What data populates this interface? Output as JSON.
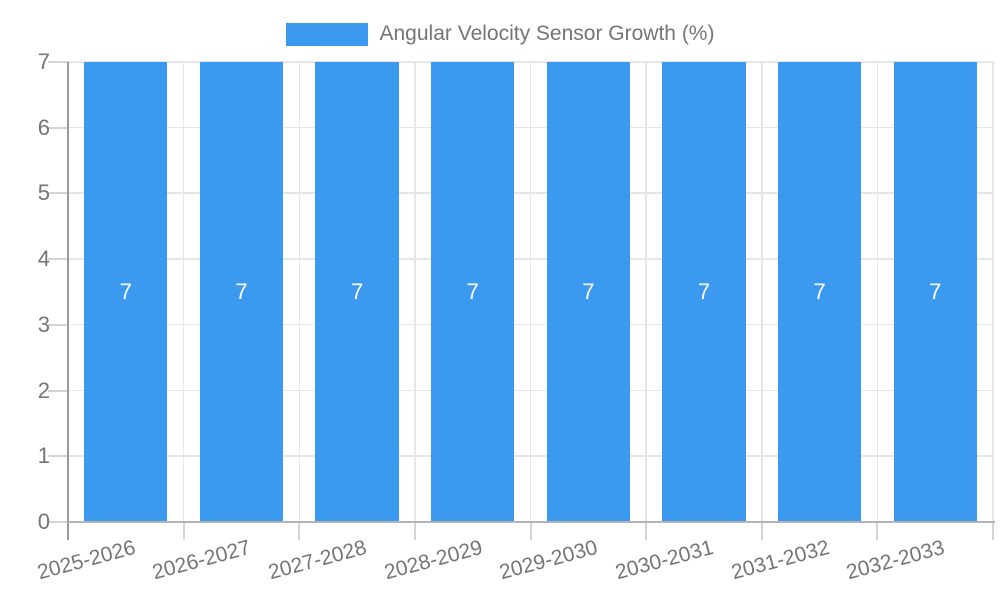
{
  "chart_data": {
    "type": "bar",
    "title": "",
    "xlabel": "",
    "ylabel": "",
    "categories": [
      "2025-2026",
      "2026-2027",
      "2027-2028",
      "2028-2029",
      "2029-2030",
      "2030-2031",
      "2031-2032",
      "2032-2033"
    ],
    "series": [
      {
        "name": "Angular Velocity Sensor Growth (%)",
        "values": [
          7,
          7,
          7,
          7,
          7,
          7,
          7,
          7
        ]
      }
    ],
    "bar_value_labels": [
      "7",
      "7",
      "7",
      "7",
      "7",
      "7",
      "7",
      "7"
    ],
    "ylim": [
      0,
      7
    ],
    "yticks": [
      0,
      1,
      2,
      3,
      4,
      5,
      6,
      7
    ],
    "grid": true,
    "legend_position": "top",
    "colors": {
      "bar": "#3b99ef",
      "bar_value_text": "#ffffff",
      "axis_text": "#757575",
      "gridline": "#e6e6e6",
      "tick": "#d4d4d4",
      "y_axis_line": "#9a9a9a",
      "baseline": "#b3b3b3",
      "background": "#ffffff"
    }
  }
}
